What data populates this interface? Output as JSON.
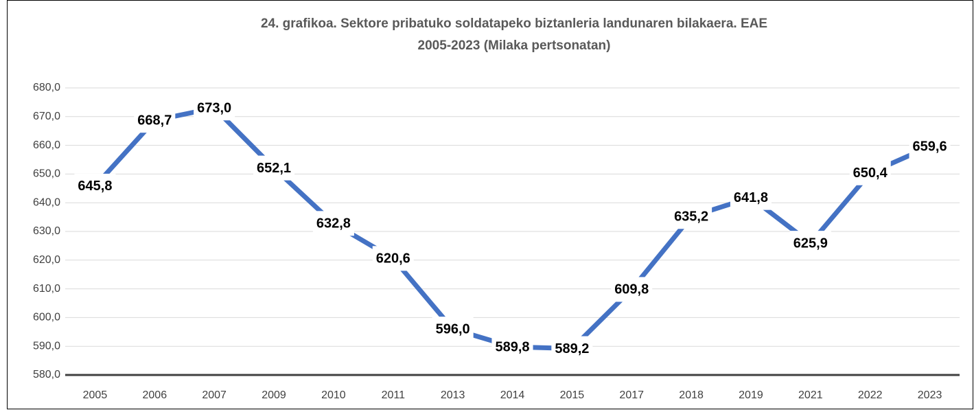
{
  "chart_data": {
    "type": "line",
    "title": [
      "24. grafikoa. Sektore pribatuko soldatapeko biztanleria landunaren bilakaera. EAE",
      "2005-2023 (Milaka pertsonatan)"
    ],
    "categories": [
      "2005",
      "2006",
      "2007",
      "2009",
      "2010",
      "2011",
      "2013",
      "2014",
      "2015",
      "2017",
      "2018",
      "2019",
      "2021",
      "2022",
      "2023"
    ],
    "values": [
      645.8,
      668.7,
      673.0,
      652.1,
      632.8,
      620.6,
      596.0,
      589.8,
      589.2,
      609.8,
      635.2,
      641.8,
      625.9,
      650.4,
      659.6
    ],
    "value_labels": [
      "645,8",
      "668,7",
      "673,0",
      "652,1",
      "632,8",
      "620,6",
      "596,0",
      "589,8",
      "589,2",
      "609,8",
      "635,2",
      "641,8",
      "625,9",
      "650,4",
      "659,6"
    ],
    "color": "#4472c4",
    "ylim": [
      580,
      680
    ],
    "yticks": [
      {
        "value": 580,
        "label": "580,0"
      },
      {
        "value": 590,
        "label": "590,0"
      },
      {
        "value": 600,
        "label": "600,0"
      },
      {
        "value": 610,
        "label": "610,0"
      },
      {
        "value": 620,
        "label": "620,0"
      },
      {
        "value": 630,
        "label": "630,0"
      },
      {
        "value": 640,
        "label": "640,0"
      },
      {
        "value": 650,
        "label": "650,0"
      },
      {
        "value": 660,
        "label": "660,0"
      },
      {
        "value": 670,
        "label": "670,0"
      },
      {
        "value": 680,
        "label": "680,0"
      }
    ],
    "grid": true
  }
}
